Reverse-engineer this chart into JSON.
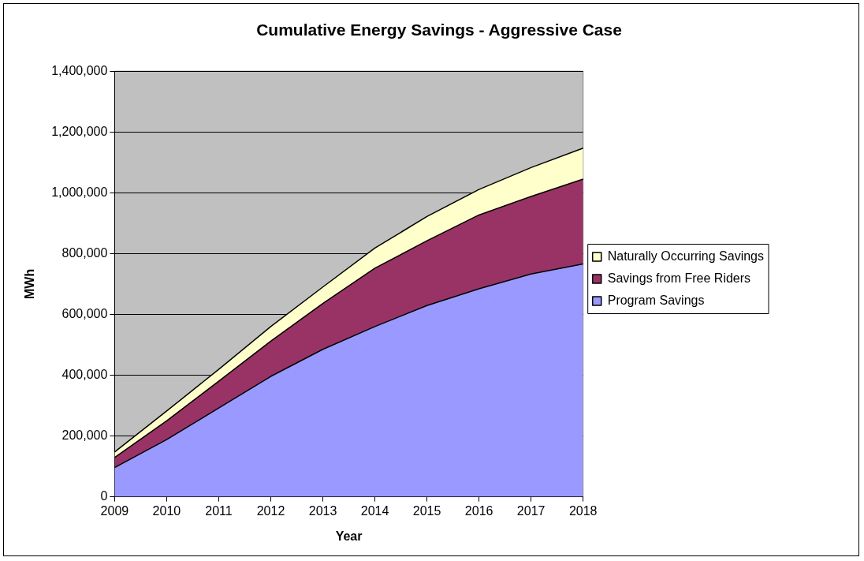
{
  "chart_data": {
    "type": "area",
    "title": "Cumulative Energy Savings - Aggressive Case",
    "xlabel": "Year",
    "ylabel": "MWh",
    "categories": [
      "2009",
      "2010",
      "2011",
      "2012",
      "2013",
      "2014",
      "2015",
      "2016",
      "2017",
      "2018"
    ],
    "series": [
      {
        "name": "Program Savings",
        "color": "#9999ff",
        "values": [
          96000,
          188000,
          292000,
          396000,
          485000,
          560000,
          629000,
          684000,
          733000,
          766000
        ]
      },
      {
        "name": "Savings from Free Riders",
        "color": "#993366",
        "values": [
          33000,
          62000,
          88000,
          116000,
          151000,
          192000,
          213000,
          243000,
          255000,
          279000
        ]
      },
      {
        "name": "Naturally Occurring Savings",
        "color": "#ffffcc",
        "values": [
          18000,
          32000,
          39000,
          48000,
          54000,
          66000,
          80000,
          84000,
          95000,
          102000
        ]
      }
    ],
    "stacked": true,
    "ylim": [
      0,
      1400000
    ],
    "yticks": [
      0,
      {
        "value": 200000,
        "label": "200,000"
      },
      {
        "value": 400000,
        "label": "400,000"
      },
      {
        "value": 600000,
        "label": "600,000"
      },
      {
        "value": 800000,
        "label": "800,000"
      },
      {
        "value": 1000000,
        "label": "1,000,000"
      },
      {
        "value": 1200000,
        "label": "1,200,000"
      },
      {
        "value": 1400000,
        "label": "1,400,000"
      }
    ],
    "grid": "y",
    "legend": "right"
  }
}
